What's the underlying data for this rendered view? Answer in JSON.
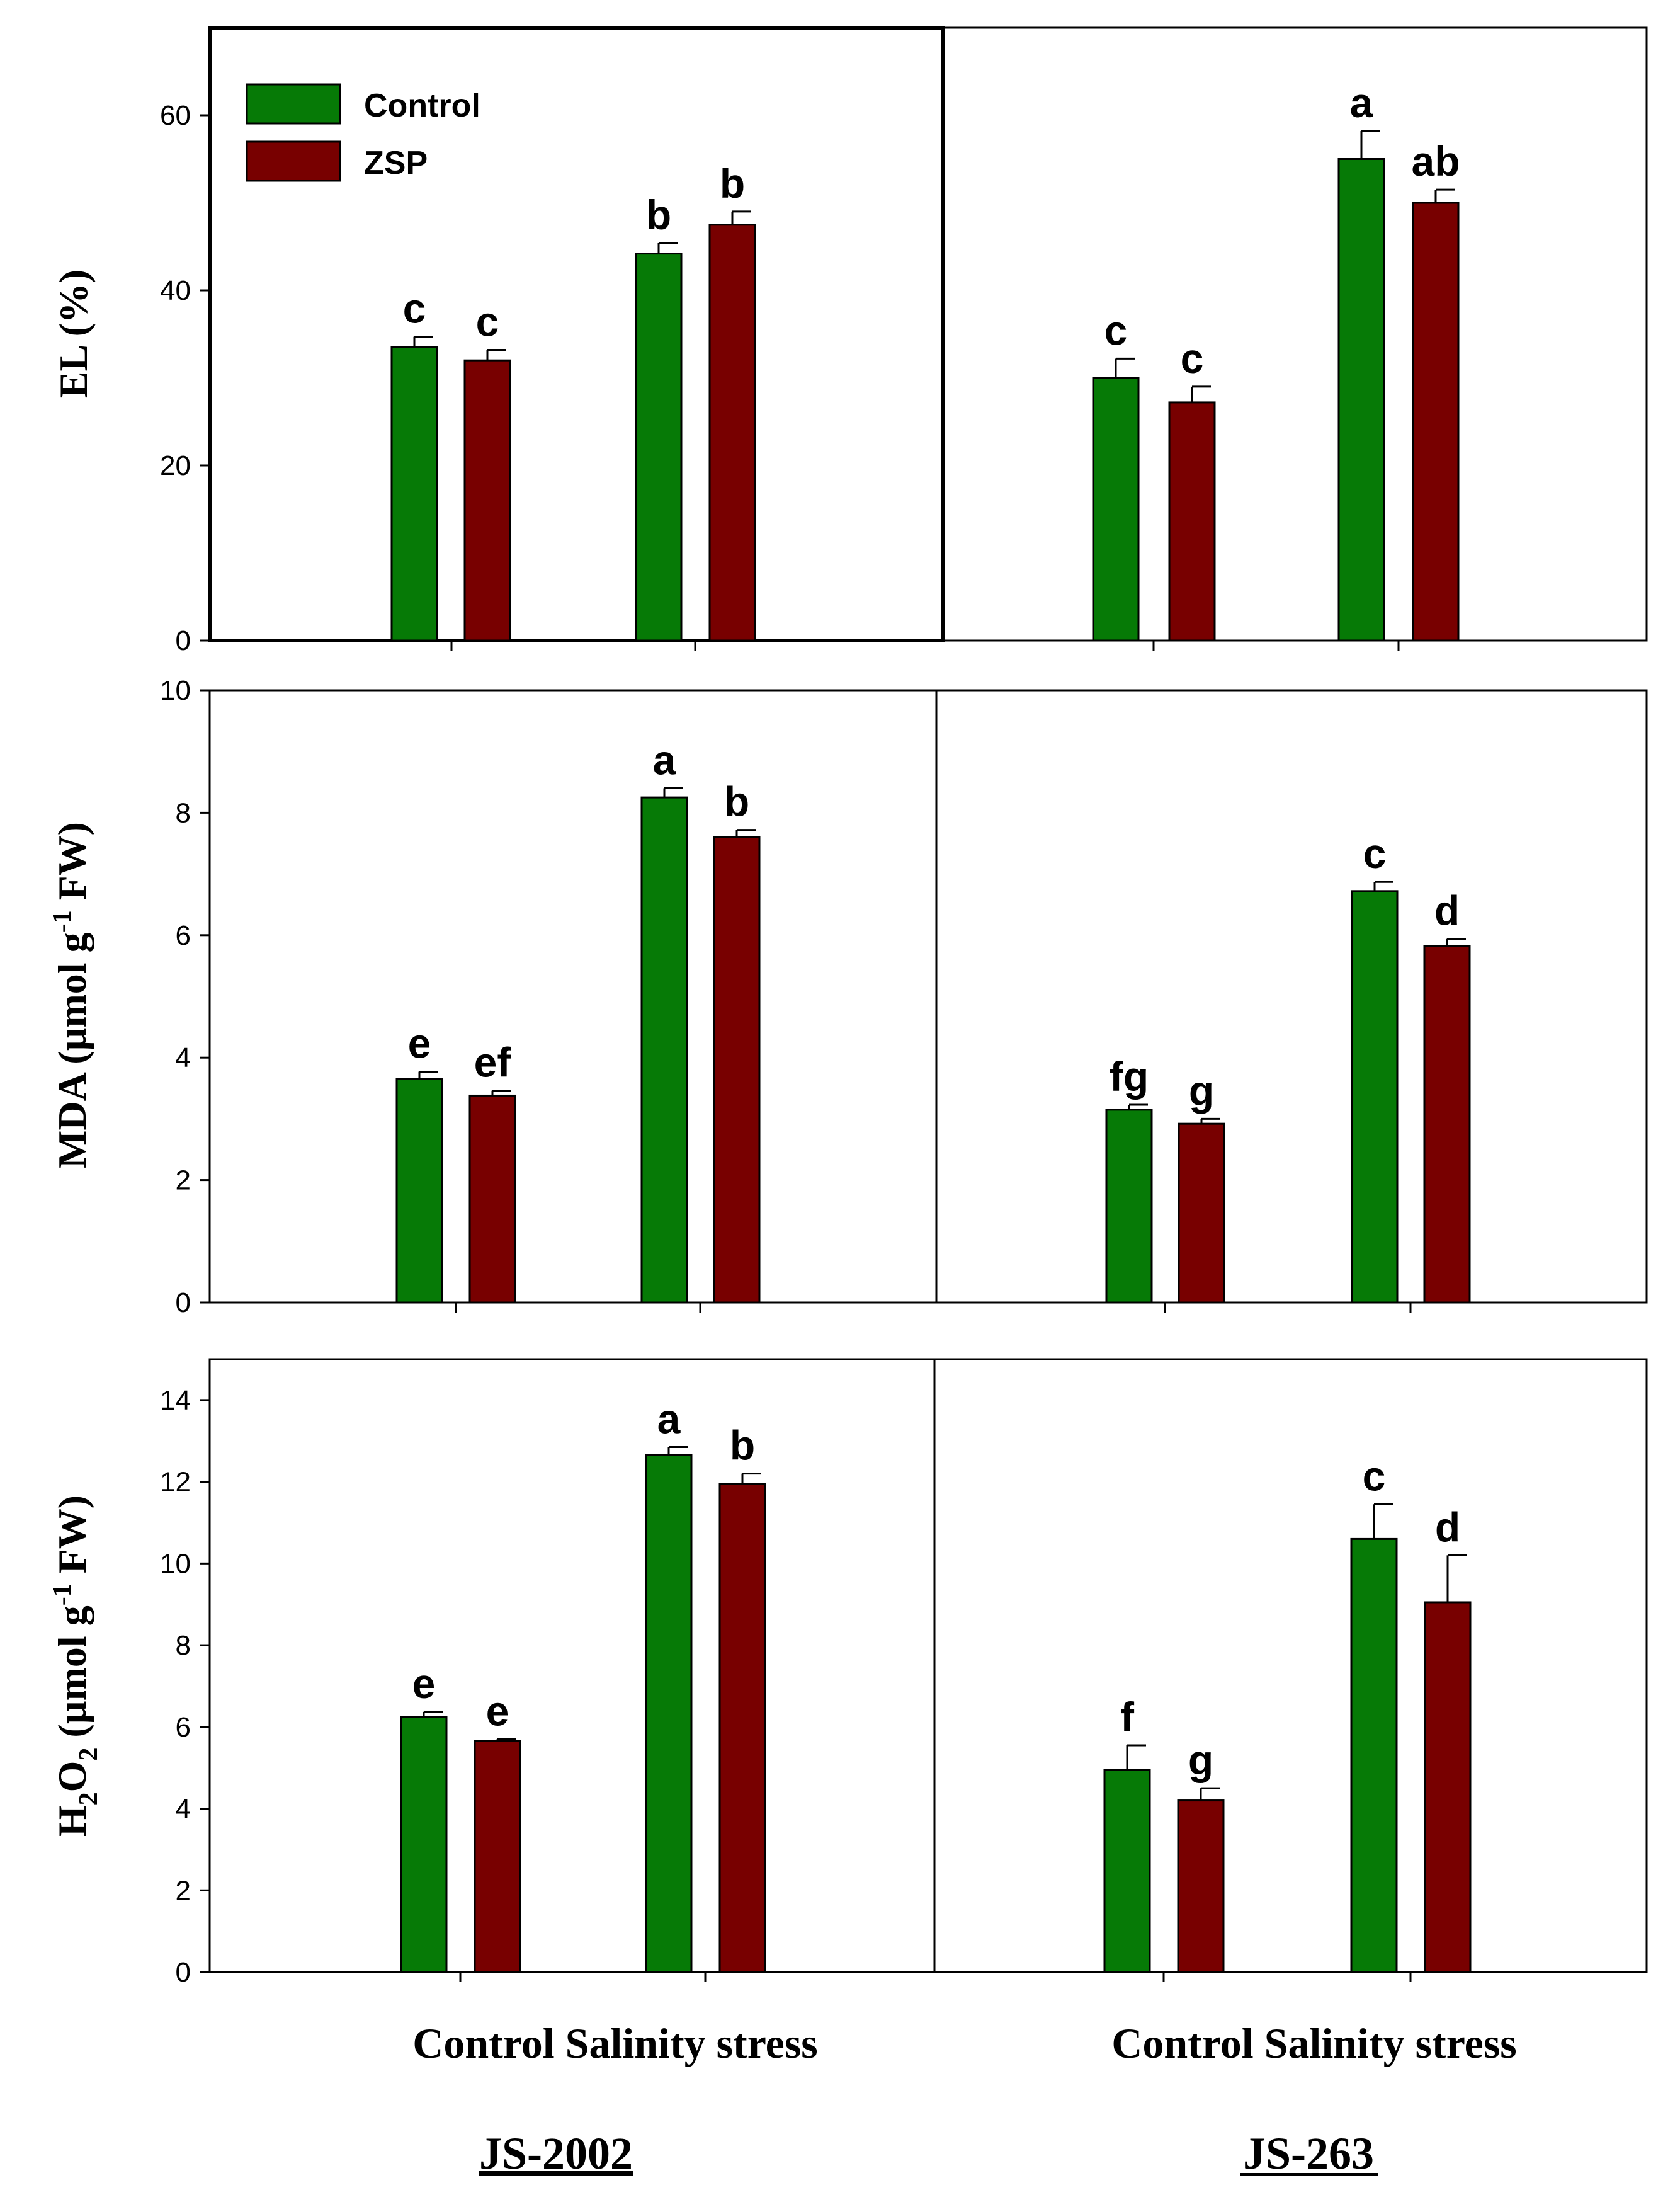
{
  "colors": {
    "control": "#067A06",
    "zsp": "#780000"
  },
  "legend": {
    "control_label": "Control",
    "zsp_label": "ZSP"
  },
  "x_axis": {
    "left_categories": "Control Salinity stress",
    "right_categories": "Control Salinity stress"
  },
  "cultivars": {
    "left": "JS-2002",
    "right": "JS-263"
  },
  "chart_data": [
    {
      "type": "bar",
      "ylabel": "EL (%)",
      "ylim": [
        0,
        70
      ],
      "yticks": [
        0,
        20,
        40,
        60
      ],
      "groups": [
        "JS-2002 Control",
        "JS-2002 Salinity stress",
        "JS-263 Control",
        "JS-263 Salinity stress"
      ],
      "series": [
        {
          "name": "Control",
          "values": [
            33.5,
            44.2,
            30.0,
            55.0
          ],
          "errors": [
            1.2,
            1.2,
            2.2,
            3.2
          ],
          "letters": [
            "c",
            "b",
            "c",
            "a"
          ]
        },
        {
          "name": "ZSP",
          "values": [
            32.0,
            47.5,
            27.2,
            50.0
          ],
          "errors": [
            1.2,
            1.5,
            1.8,
            1.5
          ],
          "letters": [
            "c",
            "b",
            "c",
            "ab"
          ]
        }
      ]
    },
    {
      "type": "bar",
      "ylabel": "MDA (µmol g⁻¹ FW)",
      "ylim": [
        0,
        10
      ],
      "yticks": [
        0,
        2,
        4,
        6,
        8,
        10
      ],
      "groups": [
        "JS-2002 Control",
        "JS-2002 Salinity stress",
        "JS-263 Control",
        "JS-263 Salinity stress"
      ],
      "series": [
        {
          "name": "Control",
          "values": [
            3.65,
            8.25,
            3.15,
            6.72
          ],
          "errors": [
            0.12,
            0.15,
            0.08,
            0.15
          ],
          "letters": [
            "e",
            "a",
            "fg",
            "c"
          ]
        },
        {
          "name": "ZSP",
          "values": [
            3.38,
            7.6,
            2.92,
            5.82
          ],
          "errors": [
            0.08,
            0.12,
            0.08,
            0.12
          ],
          "letters": [
            "ef",
            "b",
            "g",
            "d"
          ]
        }
      ]
    },
    {
      "type": "bar",
      "ylabel": "H₂O₂ (µmol g⁻¹ FW)",
      "ylim": [
        0,
        15
      ],
      "yticks": [
        0,
        2,
        4,
        6,
        8,
        10,
        12,
        14
      ],
      "groups": [
        "JS-2002 Control",
        "JS-2002 Salinity stress",
        "JS-263 Control",
        "JS-263 Salinity stress"
      ],
      "series": [
        {
          "name": "Control",
          "values": [
            6.25,
            12.65,
            4.95,
            10.6
          ],
          "errors": [
            0.12,
            0.2,
            0.6,
            0.85
          ],
          "letters": [
            "e",
            "a",
            "f",
            "c"
          ]
        },
        {
          "name": "ZSP",
          "values": [
            5.65,
            11.95,
            4.2,
            9.05
          ],
          "errors": [
            0.05,
            0.25,
            0.3,
            1.15
          ],
          "letters": [
            "e",
            "b",
            "g",
            "d"
          ]
        }
      ]
    }
  ]
}
